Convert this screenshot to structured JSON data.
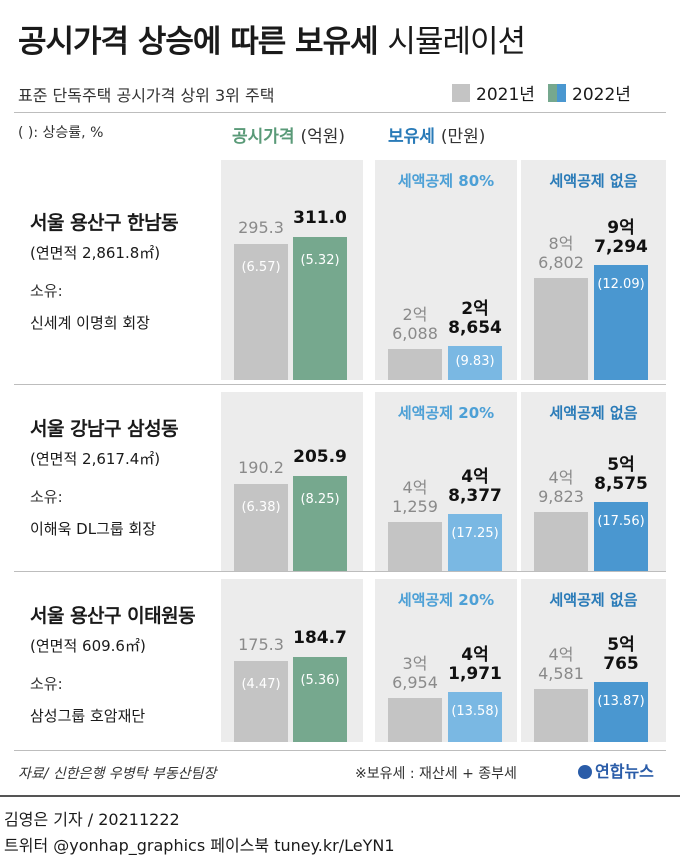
{
  "header": {
    "title_bold": "공시가격 상승에 따른 보유세",
    "title_light": "시뮬레이션",
    "subtitle": "표준 단독주택 공시가격 상위 3위 주택",
    "unit_note": "( ): 상승률, %",
    "legend": [
      {
        "label": "2021년",
        "color": "#c4c4c4"
      },
      {
        "label": "2022년",
        "color": "#76a88e",
        "color2": "#4a97d0"
      }
    ]
  },
  "columns": {
    "price_head": "공시가격",
    "price_unit": "(억원)",
    "tax_head": "보유세",
    "tax_unit": "(만원)"
  },
  "colors": {
    "old": "#c4c4c4",
    "price_new": "#76a88e",
    "tax_partial_new": "#7ab8e3",
    "tax_none_new": "#4a97d0",
    "price_head": "#5a9a78",
    "tax_head": "#2a7bb8"
  },
  "chart_data": {
    "type": "bar",
    "series": [
      {
        "name": "2021년"
      },
      {
        "name": "2022년"
      }
    ],
    "houses": [
      {
        "place": "서울 용산구 한남동",
        "area": "(연면적 2,861.8㎡)",
        "owner_label": "소유:",
        "owner": "신세계 이명희 회장",
        "price": {
          "old": 295.3,
          "new": 311.0,
          "old_label": "295.3",
          "new_label": "311.0",
          "old_rate": "(6.57)",
          "new_rate": "(5.32)"
        },
        "tax_partial": {
          "label": "세액공제 80%",
          "old": 26088,
          "new": 28654,
          "old_l1": "2억",
          "old_l2": "6,088",
          "new_l1": "2억",
          "new_l2": "8,654",
          "new_rate": "(9.83)"
        },
        "tax_none": {
          "label": "세액공제 없음",
          "old": 86802,
          "new": 97294,
          "old_l1": "8억",
          "old_l2": "6,802",
          "new_l1": "9억",
          "new_l2": "7,294",
          "new_rate": "(12.09)"
        }
      },
      {
        "place": "서울 강남구 삼성동",
        "area": "(연면적 2,617.4㎡)",
        "owner_label": "소유:",
        "owner": "이해욱 DL그룹 회장",
        "price": {
          "old": 190.2,
          "new": 205.9,
          "old_label": "190.2",
          "new_label": "205.9",
          "old_rate": "(6.38)",
          "new_rate": "(8.25)"
        },
        "tax_partial": {
          "label": "세액공제 20%",
          "old": 41259,
          "new": 48377,
          "old_l1": "4억",
          "old_l2": "1,259",
          "new_l1": "4억",
          "new_l2": "8,377",
          "new_rate": "(17.25)"
        },
        "tax_none": {
          "label": "세액공제 없음",
          "old": 49823,
          "new": 58575,
          "old_l1": "4억",
          "old_l2": "9,823",
          "new_l1": "5억",
          "new_l2": "8,575",
          "new_rate": "(17.56)"
        }
      },
      {
        "place": "서울 용산구 이태원동",
        "area": "(연면적 609.6㎡)",
        "owner_label": "소유:",
        "owner": "삼성그룹 호암재단",
        "price": {
          "old": 175.3,
          "new": 184.7,
          "old_label": "175.3",
          "new_label": "184.7",
          "old_rate": "(4.47)",
          "new_rate": "(5.36)"
        },
        "tax_partial": {
          "label": "세액공제 20%",
          "old": 36954,
          "new": 41971,
          "old_l1": "3억",
          "old_l2": "6,954",
          "new_l1": "4억",
          "new_l2": "1,971",
          "new_rate": "(13.58)"
        },
        "tax_none": {
          "label": "세액공제 없음",
          "old": 44581,
          "new": 50765,
          "old_l1": "4억",
          "old_l2": "4,581",
          "new_l1": "5억",
          "new_l2": "765",
          "new_rate": "(13.87)"
        }
      }
    ]
  },
  "footer": {
    "source": "자료/ 신한은행 우병탁 부동산팀장",
    "note": "※보유세 : 재산세 + 종부세",
    "logo": "연합뉴스",
    "byline": "김영은 기자 / 20211222",
    "social": "트위터 @yonhap_graphics  페이스북 tuney.kr/LeYN1"
  }
}
